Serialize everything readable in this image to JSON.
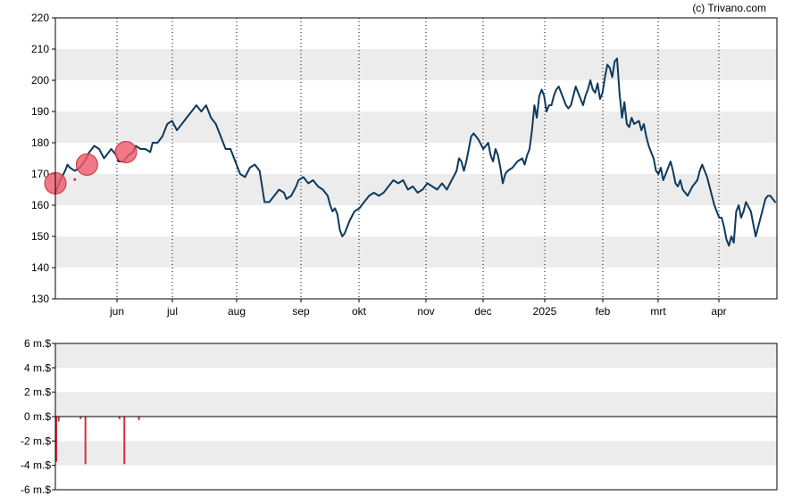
{
  "credit": "(c) Trivano.com",
  "colors": {
    "price_line": "#0e3a5c",
    "band": "#ececec",
    "marker_fill": "#ee5a6a",
    "marker_stroke": "#c73040",
    "volume_bar": "#dd2a3a"
  },
  "chart_data": [
    {
      "type": "line",
      "title": "",
      "x_tick_labels": [
        "jun",
        "jul",
        "aug",
        "sep",
        "okt",
        "nov",
        "dec",
        "2025",
        "feb",
        "mrt",
        "apr"
      ],
      "y_tick_labels": [
        "130",
        "140",
        "150",
        "160",
        "170",
        "180",
        "190",
        "200",
        "210",
        "220"
      ],
      "ylim": [
        130,
        220
      ],
      "grid": "alternating horizontal bands, dotted vertical lines at month ticks",
      "series": [
        {
          "points": [
            [
              0,
              164
            ],
            [
              2,
              168
            ],
            [
              4,
              171
            ],
            [
              5,
              173
            ],
            [
              6,
              172
            ],
            [
              8,
              171
            ],
            [
              10,
              172
            ],
            [
              12,
              174
            ],
            [
              14,
              177
            ],
            [
              16,
              179
            ],
            [
              18,
              178
            ],
            [
              20,
              175
            ],
            [
              22,
              177
            ],
            [
              23,
              178
            ],
            [
              25,
              176
            ],
            [
              26,
              174
            ],
            [
              28,
              174
            ],
            [
              30,
              176
            ],
            [
              32,
              177
            ],
            [
              33,
              179
            ],
            [
              35,
              178
            ],
            [
              37,
              178
            ],
            [
              39,
              177
            ],
            [
              40,
              180
            ],
            [
              42,
              180
            ],
            [
              44,
              182
            ],
            [
              46,
              186
            ],
            [
              48,
              187
            ],
            [
              50,
              184
            ],
            [
              52,
              186
            ],
            [
              54,
              188
            ],
            [
              56,
              190
            ],
            [
              58,
              192
            ],
            [
              60,
              190
            ],
            [
              62,
              192
            ],
            [
              64,
              188
            ],
            [
              66,
              186
            ],
            [
              68,
              182
            ],
            [
              70,
              178
            ],
            [
              72,
              178
            ],
            [
              74,
              174
            ],
            [
              76,
              170
            ],
            [
              78,
              169
            ],
            [
              80,
              172
            ],
            [
              82,
              173
            ],
            [
              84,
              171
            ],
            [
              85,
              166
            ],
            [
              86,
              161
            ],
            [
              88,
              161
            ],
            [
              90,
              163
            ],
            [
              92,
              165
            ],
            [
              94,
              164
            ],
            [
              95,
              162
            ],
            [
              97,
              163
            ],
            [
              99,
              166
            ],
            [
              100,
              168
            ],
            [
              102,
              169
            ],
            [
              104,
              167
            ],
            [
              106,
              168
            ],
            [
              108,
              166
            ],
            [
              110,
              165
            ],
            [
              112,
              163
            ],
            [
              113,
              160
            ],
            [
              114,
              158
            ],
            [
              115,
              159
            ],
            [
              116,
              157
            ],
            [
              117,
              152
            ],
            [
              118,
              150
            ],
            [
              119,
              151
            ],
            [
              121,
              155
            ],
            [
              123,
              158
            ],
            [
              125,
              159
            ],
            [
              127,
              161
            ],
            [
              129,
              163
            ],
            [
              131,
              164
            ],
            [
              133,
              163
            ],
            [
              135,
              164
            ],
            [
              137,
              166
            ],
            [
              139,
              168
            ],
            [
              141,
              167
            ],
            [
              143,
              168
            ],
            [
              145,
              165
            ],
            [
              147,
              166
            ],
            [
              149,
              164
            ],
            [
              151,
              165
            ],
            [
              153,
              167
            ],
            [
              155,
              166
            ],
            [
              157,
              165
            ],
            [
              159,
              167
            ],
            [
              161,
              165
            ],
            [
              163,
              168
            ],
            [
              165,
              171
            ],
            [
              166,
              175
            ],
            [
              167,
              174
            ],
            [
              168,
              171
            ],
            [
              169,
              174
            ],
            [
              170,
              178
            ],
            [
              171,
              182
            ],
            [
              172,
              183
            ],
            [
              174,
              181
            ],
            [
              176,
              178
            ],
            [
              178,
              180
            ],
            [
              179,
              176
            ],
            [
              180,
              174
            ],
            [
              181,
              178
            ],
            [
              182,
              176
            ],
            [
              183,
              172
            ],
            [
              184,
              167
            ],
            [
              185,
              170
            ],
            [
              186,
              171
            ],
            [
              188,
              172
            ],
            [
              190,
              174
            ],
            [
              192,
              175
            ],
            [
              193,
              173
            ],
            [
              194,
              176
            ],
            [
              195,
              178
            ],
            [
              196,
              184
            ],
            [
              197,
              192
            ],
            [
              198,
              188
            ],
            [
              199,
              195
            ],
            [
              200,
              197
            ],
            [
              201,
              195
            ],
            [
              202,
              190
            ],
            [
              203,
              192
            ],
            [
              204,
              192
            ],
            [
              205,
              195
            ],
            [
              206,
              197
            ],
            [
              207,
              198
            ],
            [
              208,
              196
            ],
            [
              209,
              194
            ],
            [
              210,
              192
            ],
            [
              211,
              191
            ],
            [
              212,
              192
            ],
            [
              213,
              195
            ],
            [
              214,
              198
            ],
            [
              215,
              196
            ],
            [
              216,
              194
            ],
            [
              217,
              192
            ],
            [
              218,
              195
            ],
            [
              219,
              197
            ],
            [
              220,
              200
            ],
            [
              221,
              197
            ],
            [
              222,
              196
            ],
            [
              223,
              199
            ],
            [
              224,
              194
            ],
            [
              225,
              196
            ],
            [
              226,
              201
            ],
            [
              227,
              205
            ],
            [
              228,
              204
            ],
            [
              229,
              201
            ],
            [
              230,
              206
            ],
            [
              231,
              207
            ],
            [
              232,
              196
            ],
            [
              233,
              188
            ],
            [
              234,
              193
            ],
            [
              235,
              186
            ],
            [
              236,
              185
            ],
            [
              237,
              188
            ],
            [
              238,
              186
            ],
            [
              240,
              187
            ],
            [
              241,
              184
            ],
            [
              242,
              186
            ],
            [
              243,
              182
            ],
            [
              244,
              179
            ],
            [
              245,
              177
            ],
            [
              246,
              175
            ],
            [
              247,
              171
            ],
            [
              248,
              170
            ],
            [
              249,
              172
            ],
            [
              250,
              168
            ],
            [
              251,
              170
            ],
            [
              252,
              172
            ],
            [
              253,
              174
            ],
            [
              254,
              171
            ],
            [
              255,
              167
            ],
            [
              256,
              166
            ],
            [
              257,
              168
            ],
            [
              258,
              165
            ],
            [
              260,
              163
            ],
            [
              262,
              166
            ],
            [
              264,
              168
            ],
            [
              265,
              171
            ],
            [
              266,
              173
            ],
            [
              268,
              169
            ],
            [
              270,
              163
            ],
            [
              271,
              160
            ],
            [
              272,
              158
            ],
            [
              273,
              156
            ],
            [
              274,
              156
            ],
            [
              275,
              153
            ],
            [
              276,
              149
            ],
            [
              277,
              147
            ],
            [
              278,
              150
            ],
            [
              279,
              148
            ],
            [
              280,
              158
            ],
            [
              281,
              160
            ],
            [
              282,
              156
            ],
            [
              283,
              158
            ],
            [
              284,
              161
            ],
            [
              286,
              158
            ],
            [
              288,
              150
            ],
            [
              290,
              156
            ],
            [
              292,
              162
            ],
            [
              293,
              163
            ],
            [
              294,
              163
            ],
            [
              296,
              161
            ]
          ]
        }
      ],
      "markers": [
        {
          "x": 0,
          "y": 167
        },
        {
          "x": 13,
          "y": 173
        },
        {
          "x": 29,
          "y": 177
        }
      ]
    },
    {
      "type": "bar",
      "title": "",
      "y_tick_labels": [
        "6 m.$",
        "4 m.$",
        "2 m.$",
        "0 m.$",
        "-2 m.$",
        "-4 m.$",
        "-6 m.$"
      ],
      "ylim": [
        -6,
        6
      ],
      "grid": "alternating horizontal bands",
      "bars": [
        {
          "x": 0,
          "value": -3.7
        },
        {
          "x": 1,
          "value": -0.4
        },
        {
          "x": 10,
          "value": -0.2
        },
        {
          "x": 12,
          "value": -3.9
        },
        {
          "x": 26,
          "value": -0.2
        },
        {
          "x": 28,
          "value": -3.9
        },
        {
          "x": 34,
          "value": -0.3
        }
      ]
    }
  ]
}
